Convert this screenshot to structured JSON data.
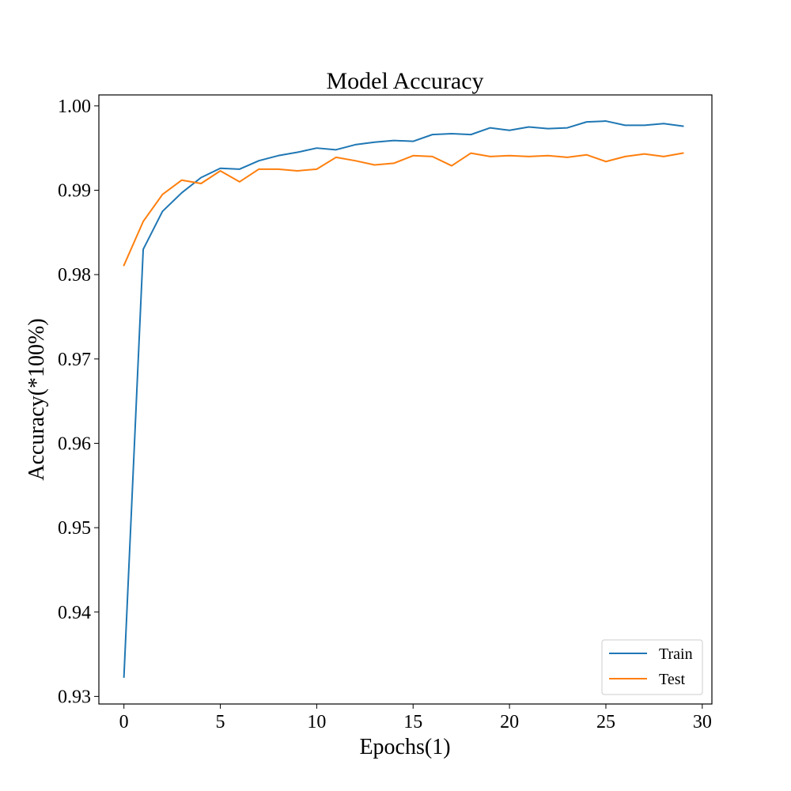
{
  "chart_data": {
    "type": "line",
    "title": "Model Accuracy",
    "xlabel": "Epochs(1)",
    "ylabel": "Accuracy(*100%)",
    "xlim": [
      -1.3,
      30.5
    ],
    "ylim": [
      0.9291,
      1.0013
    ],
    "xticks": [
      0,
      5,
      10,
      15,
      20,
      25,
      30
    ],
    "xtick_labels": [
      "0",
      "5",
      "10",
      "15",
      "20",
      "25",
      "30"
    ],
    "yticks": [
      0.93,
      0.94,
      0.95,
      0.96,
      0.97,
      0.98,
      0.99,
      1.0
    ],
    "ytick_labels": [
      "0.93",
      "0.94",
      "0.95",
      "0.96",
      "0.97",
      "0.98",
      "0.99",
      "1.00"
    ],
    "legend_position": "bottom-right",
    "grid": false,
    "x": [
      0,
      1,
      2,
      3,
      4,
      5,
      6,
      7,
      8,
      9,
      10,
      11,
      12,
      13,
      14,
      15,
      16,
      17,
      18,
      19,
      20,
      21,
      22,
      23,
      24,
      25,
      26,
      27,
      28,
      29
    ],
    "series": [
      {
        "name": "Train",
        "color": "#1f77b4",
        "values": [
          0.9323,
          0.983,
          0.9875,
          0.9897,
          0.9915,
          0.9926,
          0.9925,
          0.9935,
          0.9941,
          0.9945,
          0.995,
          0.9948,
          0.9954,
          0.9957,
          0.9959,
          0.9958,
          0.9966,
          0.9967,
          0.9966,
          0.9974,
          0.9971,
          0.9975,
          0.9973,
          0.9974,
          0.9981,
          0.9982,
          0.9977,
          0.9977,
          0.9979,
          0.9976
        ]
      },
      {
        "name": "Test",
        "color": "#ff7f0e",
        "values": [
          0.9811,
          0.9863,
          0.9895,
          0.9912,
          0.9908,
          0.9923,
          0.991,
          0.9925,
          0.9925,
          0.9923,
          0.9925,
          0.9939,
          0.9935,
          0.993,
          0.9932,
          0.9941,
          0.994,
          0.9929,
          0.9944,
          0.994,
          0.9941,
          0.994,
          0.9941,
          0.9939,
          0.9942,
          0.9934,
          0.994,
          0.9943,
          0.994,
          0.9944
        ]
      }
    ]
  }
}
